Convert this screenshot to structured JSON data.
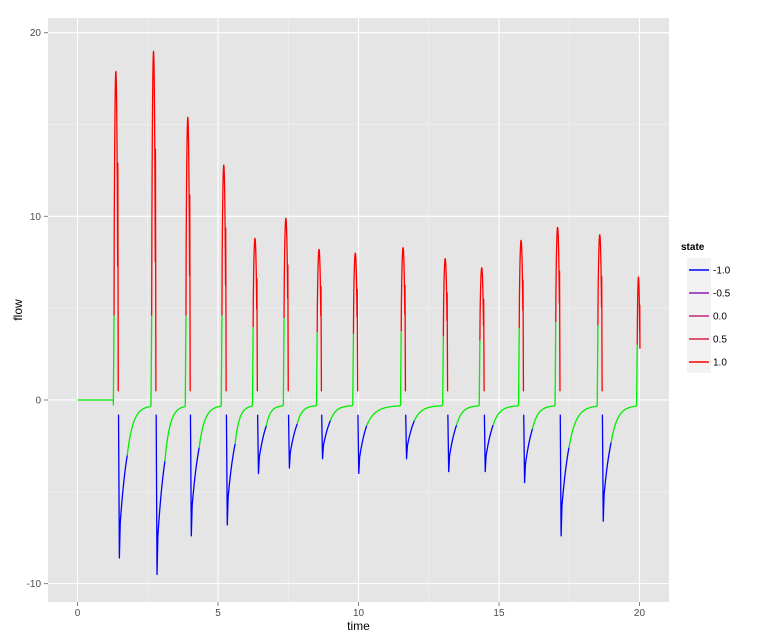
{
  "chart_data": {
    "type": "line",
    "title": "",
    "xlabel": "time",
    "ylabel": "flow",
    "xlim": [
      -1.05,
      21.05
    ],
    "ylim": [
      -11.0,
      20.8
    ],
    "x_ticks": [
      0,
      5,
      10,
      15,
      20
    ],
    "y_ticks": [
      -10,
      0,
      10,
      20
    ],
    "grid": true,
    "legend": {
      "title": "state",
      "position": "right",
      "entries": [
        {
          "label": "-1.0",
          "color": "#0000ff"
        },
        {
          "label": "-0.5",
          "color": "#8a1ab8"
        },
        {
          "label": "0.0",
          "color": "#c5267a"
        },
        {
          "label": "0.5",
          "color": "#e2204a"
        },
        {
          "label": "1.0",
          "color": "#ff0000"
        }
      ]
    },
    "colors": {
      "rising": "#ff0000",
      "recovering": "#00ee00",
      "falling": "#0000ff",
      "panel_background": "#e5e5e5",
      "grid": "#ffffff"
    },
    "baseline": {
      "x": [
        0,
        1.28
      ],
      "y": 0
    },
    "pulses": [
      {
        "t": 1.28,
        "peak": 17.9,
        "trough": -8.6,
        "next": 2.62
      },
      {
        "t": 2.62,
        "peak": 19.0,
        "trough": -9.5,
        "next": 3.84
      },
      {
        "t": 3.84,
        "peak": 15.4,
        "trough": -7.4,
        "next": 5.12
      },
      {
        "t": 5.12,
        "peak": 12.8,
        "trough": -6.8,
        "next": 6.23
      },
      {
        "t": 6.23,
        "peak": 8.8,
        "trough": -4.0,
        "next": 7.33
      },
      {
        "t": 7.33,
        "peak": 9.9,
        "trough": -3.7,
        "next": 8.51
      },
      {
        "t": 8.51,
        "peak": 8.2,
        "trough": -3.2,
        "next": 9.8
      },
      {
        "t": 9.8,
        "peak": 8.0,
        "trough": -4.0,
        "next": 11.5
      },
      {
        "t": 11.5,
        "peak": 8.3,
        "trough": -3.2,
        "next": 13.0
      },
      {
        "t": 13.0,
        "peak": 7.7,
        "trough": -3.9,
        "next": 14.3
      },
      {
        "t": 14.3,
        "peak": 7.2,
        "trough": -3.9,
        "next": 15.7
      },
      {
        "t": 15.7,
        "peak": 8.7,
        "trough": -4.5,
        "next": 17.0
      },
      {
        "t": 17.0,
        "peak": 9.4,
        "trough": -7.4,
        "next": 18.5
      },
      {
        "t": 18.5,
        "peak": 9.0,
        "trough": -6.6,
        "next": 19.9
      },
      {
        "t": 19.9,
        "peak": 6.7,
        "trough": null,
        "next": 20.0
      }
    ]
  }
}
